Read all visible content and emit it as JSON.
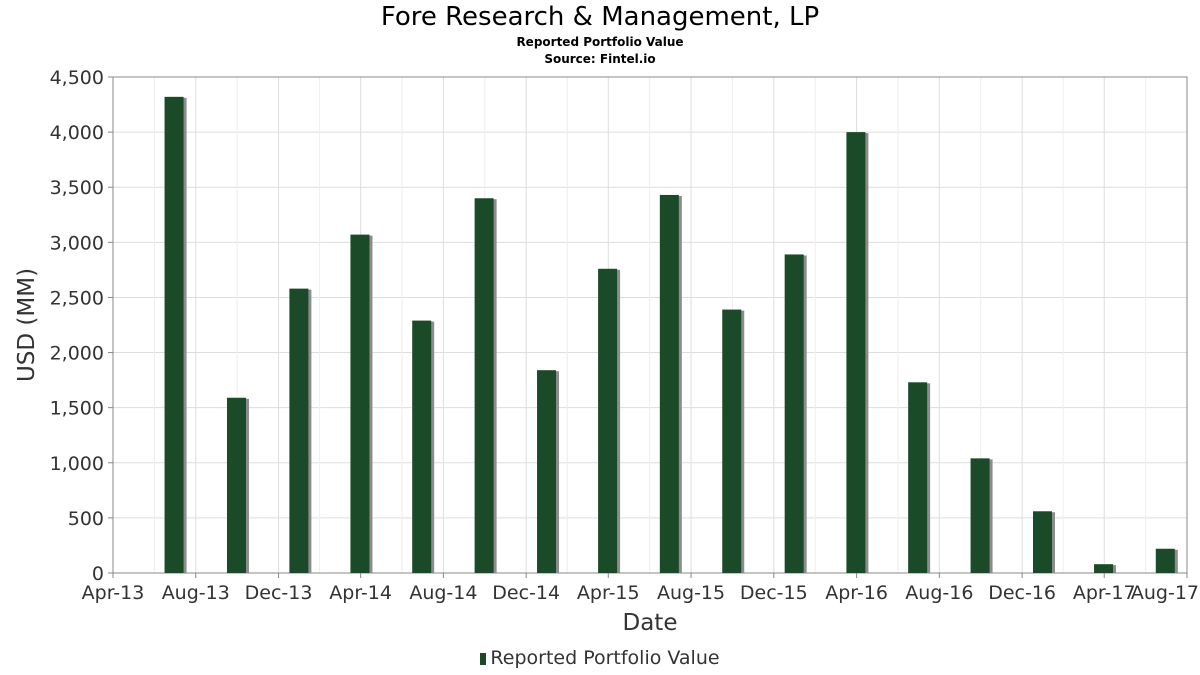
{
  "chart_data": {
    "type": "bar",
    "title": "Fore Research & Management, LP",
    "subtitle": "Reported Portfolio Value",
    "source": "Source: Fintel.io",
    "xlabel": "Date",
    "ylabel": "USD (MM)",
    "ylim": [
      0,
      4500
    ],
    "yticks": [
      0,
      500,
      1000,
      1500,
      2000,
      2500,
      3000,
      3500,
      4000,
      4500
    ],
    "ytick_labels": [
      "0",
      "500",
      "1,000",
      "1,500",
      "2,000",
      "2,500",
      "3,000",
      "3,500",
      "4,000",
      "4,500"
    ],
    "xlim": [
      "2013-04-01",
      "2017-08-01"
    ],
    "xticks": [
      "2013-04-01",
      "2013-08-01",
      "2013-12-01",
      "2014-04-01",
      "2014-08-01",
      "2014-12-01",
      "2015-04-01",
      "2015-08-01",
      "2015-12-01",
      "2016-04-01",
      "2016-08-01",
      "2016-12-01",
      "2017-04-01",
      "2017-08-01"
    ],
    "xtick_labels": [
      "Apr-13",
      "Aug-13",
      "Dec-13",
      "Apr-14",
      "Aug-14",
      "Dec-14",
      "Apr-15",
      "Aug-15",
      "Dec-15",
      "Apr-16",
      "Aug-16",
      "Dec-16",
      "Apr-17",
      "Aug-17"
    ],
    "grid": true,
    "legend_position": "bottom-center",
    "series": [
      {
        "name": "Reported Portfolio Value",
        "color": "#1b4a28",
        "x": [
          "2013-06-30",
          "2013-09-30",
          "2013-12-31",
          "2014-03-31",
          "2014-06-30",
          "2014-09-30",
          "2014-12-31",
          "2015-03-31",
          "2015-06-30",
          "2015-09-30",
          "2015-12-31",
          "2016-03-31",
          "2016-06-30",
          "2016-09-30",
          "2016-12-31",
          "2017-03-31",
          "2017-06-30"
        ],
        "values": [
          4320,
          1590,
          2580,
          3070,
          2290,
          3400,
          1840,
          2760,
          3430,
          2390,
          2890,
          4000,
          1730,
          1040,
          560,
          80,
          220
        ]
      }
    ]
  }
}
